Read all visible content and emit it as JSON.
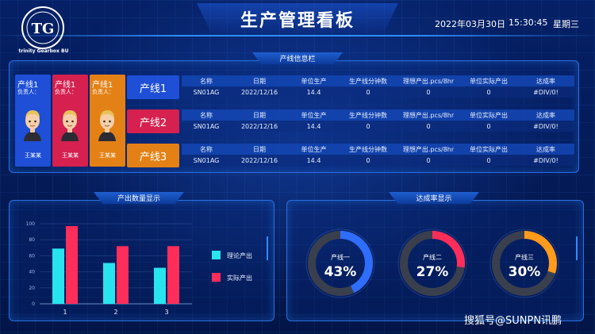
{
  "header": {
    "title": "生产管理看板",
    "date": "2022年03月30日",
    "time": "15:30:45",
    "weekday": "星期三",
    "logo_text": "trinity Gearbox BU",
    "logo_mark": "TG"
  },
  "info_panel": {
    "title": "产线信息栏"
  },
  "line_cards": [
    {
      "label": "产线1",
      "manager_label": "负责人：",
      "manager": "王某某",
      "color": "#1e4fd6"
    },
    {
      "label": "产线1",
      "manager_label": "负责人：",
      "manager": "王某某",
      "color": "#d52050"
    },
    {
      "label": "产线1",
      "manager_label": "负责人：",
      "manager": "王某某",
      "color": "#e48116"
    }
  ],
  "lines": [
    {
      "button_label": "产线1",
      "button_color": "#1e4fd6",
      "headers": [
        "名称",
        "日期",
        "单位生产",
        "生产线分钟数",
        "理想产出.pcs/8hr",
        "单位实际产出",
        "达成率"
      ],
      "row": [
        "SN01AG",
        "2022/12/16",
        "14.4",
        "0",
        "0",
        "0",
        "#DIV/0!"
      ]
    },
    {
      "button_label": "产线2",
      "button_color": "#d52050",
      "headers": [
        "名称",
        "日期",
        "单位生产",
        "生产线分钟数",
        "理想产出.pcs/8hr",
        "单位实际产出",
        "达成率"
      ],
      "row": [
        "SN01AG",
        "2022/12/16",
        "14.4",
        "0",
        "0",
        "0",
        "#DIV/0!"
      ]
    },
    {
      "button_label": "产线3",
      "button_color": "#e48116",
      "headers": [
        "名称",
        "日期",
        "单位生产",
        "生产线分钟数",
        "理想产出.pcs/8hr",
        "单位实际产出",
        "达成率"
      ],
      "row": [
        "SN01AG",
        "2022/12/16",
        "14.4",
        "0",
        "0",
        "0",
        "#DIV/0!"
      ]
    }
  ],
  "output_panel": {
    "title": "产出数量显示"
  },
  "rate_panel": {
    "title": "达成率显示"
  },
  "chart_data": [
    {
      "type": "bar",
      "categories": [
        "1",
        "2",
        "3"
      ],
      "series": [
        {
          "name": "理论产出",
          "color": "#27e4ee",
          "values": [
            69,
            51,
            45
          ]
        },
        {
          "name": "实际产出",
          "color": "#ff2d5a",
          "values": [
            97,
            72,
            72
          ]
        }
      ],
      "ylim": [
        0,
        100
      ],
      "yticks": [
        "0",
        "20",
        "40",
        "60",
        "80",
        "100"
      ]
    },
    {
      "type": "pie",
      "charts": [
        {
          "label": "产线一",
          "value": 43,
          "display": "43%",
          "color": "#2f6dff"
        },
        {
          "label": "产线二",
          "value": 27,
          "display": "27%",
          "color": "#ff2d5a"
        },
        {
          "label": "产线三",
          "value": 30,
          "display": "30%",
          "color": "#ff9a1a"
        }
      ]
    }
  ],
  "watermark": "搜狐号@SUNPN讯鹏"
}
